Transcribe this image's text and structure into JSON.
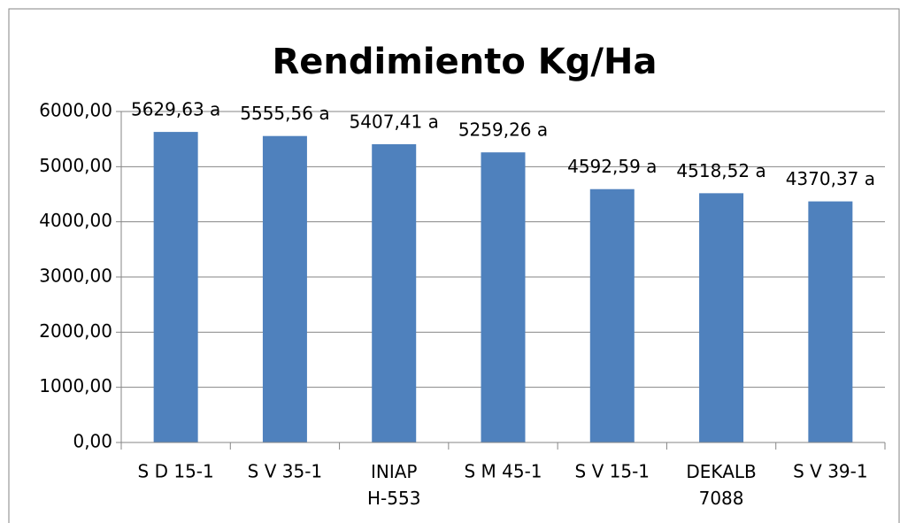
{
  "chart_data": {
    "type": "bar",
    "title": "Rendimiento Kg/Ha",
    "categories": [
      "S D 15-1",
      "S V 35-1",
      "INIAP\nH-553",
      "S M 45-1",
      "S V 15-1",
      "DEKALB\n7088",
      "S V 39-1"
    ],
    "values": [
      5629.63,
      5555.56,
      5407.41,
      5259.26,
      4592.59,
      4518.52,
      4370.37
    ],
    "value_labels": [
      "5629,63 a",
      "5555,56 a",
      "5407,41 a",
      "5259,26 a",
      "4592,59 a",
      "4518,52 a",
      "4370,37 a"
    ],
    "color": "#4f81bd",
    "ylim": [
      0,
      6000
    ],
    "yticks": [
      {
        "value": 0,
        "label": "0,00"
      },
      {
        "value": 1000,
        "label": "1000,00"
      },
      {
        "value": 2000,
        "label": "2000,00"
      },
      {
        "value": 3000,
        "label": "3000,00"
      },
      {
        "value": 4000,
        "label": "4000,00"
      },
      {
        "value": 5000,
        "label": "5000,00"
      },
      {
        "value": 6000,
        "label": "6000,00"
      }
    ],
    "grid": true
  }
}
